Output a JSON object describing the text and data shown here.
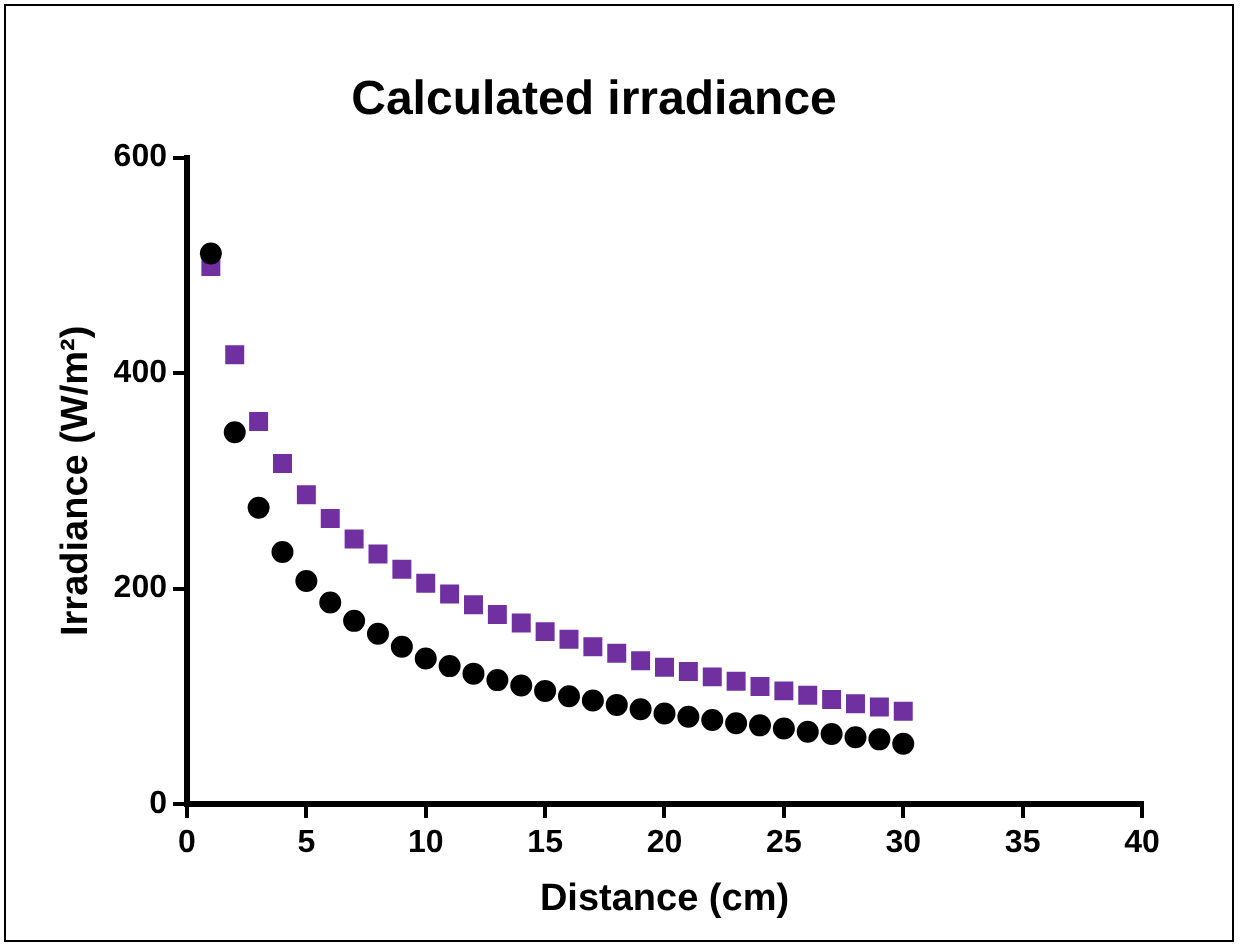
{
  "chart_data": {
    "type": "scatter",
    "title": "Calculated irradiance",
    "xlabel": "Distance (cm)",
    "ylabel": "Irradiance (W/m²)",
    "x": [
      1,
      2,
      3,
      4,
      5,
      6,
      7,
      8,
      9,
      10,
      11,
      12,
      13,
      14,
      15,
      16,
      17,
      18,
      19,
      20,
      21,
      22,
      23,
      24,
      25,
      26,
      27,
      28,
      29,
      30
    ],
    "series": [
      {
        "color": "#000000",
        "marker": "circle",
        "values": [
          511,
          345,
          275,
          234,
          207,
          187,
          170,
          158,
          146,
          135,
          128,
          121,
          115,
          110,
          105,
          100,
          96,
          92,
          88,
          84,
          81,
          78,
          75,
          73,
          70,
          67,
          65,
          62,
          60,
          56
        ]
      },
      {
        "color": "#7030a0",
        "marker": "square",
        "values": [
          499,
          417,
          355,
          316,
          287,
          265,
          246,
          232,
          218,
          205,
          195,
          185,
          176,
          168,
          160,
          153,
          146,
          140,
          133,
          127,
          123,
          118,
          114,
          109,
          105,
          101,
          97,
          93,
          90,
          86
        ]
      }
    ],
    "xlim": [
      0,
      40
    ],
    "xticks": [
      0,
      5,
      10,
      15,
      20,
      25,
      30,
      35,
      40
    ],
    "ylim": [
      0,
      600
    ],
    "yticks": [
      0,
      200,
      400,
      600
    ],
    "grid": false,
    "legend": false
  }
}
